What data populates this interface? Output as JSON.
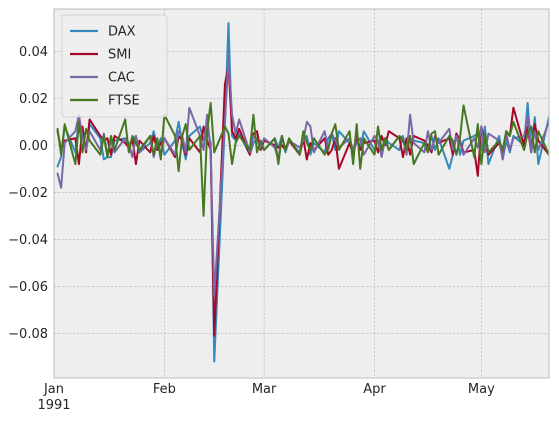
{
  "chart_data": {
    "type": "line",
    "title": "",
    "xlabel": "",
    "ylabel": "",
    "grid": true,
    "legend_position": "top-left",
    "background": "#eeeeee",
    "x_start": "1991-01-01",
    "x_end": "1991-05-20",
    "x_ticks": [
      {
        "date": "1991-01-01",
        "label": "Jan",
        "sublabel": "1991"
      },
      {
        "date": "1991-02-01",
        "label": "Feb",
        "sublabel": ""
      },
      {
        "date": "1991-03-01",
        "label": "Mar",
        "sublabel": ""
      },
      {
        "date": "1991-04-01",
        "label": "Apr",
        "sublabel": ""
      },
      {
        "date": "1991-05-01",
        "label": "May",
        "sublabel": ""
      }
    ],
    "ylim": [
      -0.099,
      0.058
    ],
    "y_ticks": [
      0.04,
      0.02,
      0.0,
      -0.02,
      -0.04,
      -0.06,
      -0.08
    ],
    "y_tick_labels": [
      "0.04",
      "0.02",
      "0.00",
      "−0.02",
      "−0.04",
      "−0.06",
      "−0.08"
    ],
    "x": [
      "1991-01-02",
      "1991-01-03",
      "1991-01-04",
      "1991-01-07",
      "1991-01-08",
      "1991-01-09",
      "1991-01-10",
      "1991-01-11",
      "1991-01-14",
      "1991-01-15",
      "1991-01-16",
      "1991-01-17",
      "1991-01-18",
      "1991-01-21",
      "1991-01-22",
      "1991-01-23",
      "1991-01-24",
      "1991-01-25",
      "1991-01-28",
      "1991-01-29",
      "1991-01-30",
      "1991-01-31",
      "1991-02-01",
      "1991-02-04",
      "1991-02-05",
      "1991-02-06",
      "1991-02-07",
      "1991-02-08",
      "1991-02-11",
      "1991-02-12",
      "1991-02-13",
      "1991-02-14",
      "1991-02-15",
      "1991-02-18",
      "1991-02-19",
      "1991-02-20",
      "1991-02-21",
      "1991-02-22",
      "1991-02-25",
      "1991-02-26",
      "1991-02-27",
      "1991-02-28",
      "1991-03-01",
      "1991-03-04",
      "1991-03-05",
      "1991-03-06",
      "1991-03-07",
      "1991-03-08",
      "1991-03-11",
      "1991-03-12",
      "1991-03-13",
      "1991-03-14",
      "1991-03-15",
      "1991-03-18",
      "1991-03-19",
      "1991-03-20",
      "1991-03-21",
      "1991-03-22",
      "1991-03-25",
      "1991-03-26",
      "1991-03-27",
      "1991-03-28",
      "1991-03-29",
      "1991-04-01",
      "1991-04-02",
      "1991-04-03",
      "1991-04-04",
      "1991-04-05",
      "1991-04-08",
      "1991-04-09",
      "1991-04-10",
      "1991-04-11",
      "1991-04-12",
      "1991-04-15",
      "1991-04-16",
      "1991-04-17",
      "1991-04-18",
      "1991-04-19",
      "1991-04-22",
      "1991-04-23",
      "1991-04-24",
      "1991-04-25",
      "1991-04-26",
      "1991-04-29",
      "1991-04-30",
      "1991-05-01",
      "1991-05-02",
      "1991-05-03",
      "1991-05-06",
      "1991-05-07",
      "1991-05-08",
      "1991-05-09",
      "1991-05-10",
      "1991-05-13",
      "1991-05-14",
      "1991-05-15",
      "1991-05-16",
      "1991-05-17",
      "1991-05-20"
    ],
    "series": [
      {
        "name": "DAX",
        "color": "#348abd",
        "values": [
          -0.009,
          -0.005,
          0.008,
          -0.003,
          0.011,
          0.004,
          -0.002,
          0.009,
          0.003,
          -0.006,
          -0.005,
          -0.005,
          0.002,
          0.003,
          -0.001,
          0.002,
          0.004,
          -0.003,
          0.001,
          0.006,
          -0.001,
          0.003,
          -0.004,
          0.002,
          0.01,
          0.001,
          -0.006,
          0.004,
          0.008,
          0.002,
          0.007,
          0.001,
          -0.092,
          0.01,
          0.052,
          0.004,
          0.002,
          0.005,
          -0.004,
          0.001,
          0.003,
          0.0,
          -0.002,
          0.003,
          -0.001,
          0.004,
          -0.003,
          0.002,
          -0.003,
          0.002,
          0.004,
          -0.004,
          0.001,
          -0.003,
          0.003,
          0.005,
          -0.002,
          0.006,
          0.001,
          -0.002,
          0.003,
          -0.001,
          0.006,
          -0.002,
          0.002,
          -0.003,
          0.003,
          0.001,
          -0.002,
          0.004,
          -0.003,
          0.003,
          0.002,
          0.001,
          -0.002,
          0.004,
          -0.002,
          0.003,
          -0.01,
          -0.004,
          0.005,
          -0.004,
          0.002,
          0.004,
          0.005,
          -0.002,
          0.008,
          -0.008,
          0.004,
          -0.006,
          0.002,
          -0.003,
          0.004,
          0.0,
          0.018,
          -0.002,
          0.012,
          -0.008,
          0.012
        ]
      },
      {
        "name": "SMI",
        "color": "#a60628",
        "values": [
          0.006,
          -0.002,
          0.002,
          0.003,
          -0.008,
          0.008,
          -0.003,
          0.011,
          0.004,
          0.002,
          0.003,
          -0.004,
          0.004,
          0.001,
          -0.001,
          0.003,
          -0.008,
          0.002,
          -0.003,
          0.004,
          -0.002,
          0.001,
          0.003,
          -0.005,
          0.004,
          0.002,
          -0.004,
          0.003,
          -0.003,
          0.008,
          0.002,
          -0.002,
          -0.081,
          0.026,
          0.034,
          0.006,
          0.003,
          0.007,
          -0.004,
          0.005,
          0.006,
          -0.002,
          0.002,
          0.0,
          -0.001,
          0.0,
          -0.002,
          0.002,
          -0.004,
          0.003,
          -0.006,
          0.001,
          -0.002,
          0.003,
          -0.004,
          -0.002,
          0.003,
          -0.01,
          0.001,
          -0.004,
          0.004,
          -0.002,
          0.001,
          0.002,
          -0.003,
          0.004,
          0.0,
          0.006,
          0.003,
          -0.005,
          0.003,
          -0.004,
          0.004,
          0.002,
          0.0,
          -0.003,
          0.004,
          0.001,
          0.003,
          -0.004,
          0.005,
          0.002,
          -0.003,
          -0.002,
          -0.013,
          0.008,
          0.002,
          -0.004,
          0.001,
          -0.003,
          0.006,
          0.004,
          0.016,
          0.0,
          0.008,
          -0.003,
          0.009,
          0.002,
          -0.004
        ]
      },
      {
        "name": "CAC",
        "color": "#7a68a6",
        "values": [
          -0.012,
          -0.018,
          0.001,
          0.006,
          0.013,
          0.003,
          -0.002,
          0.006,
          -0.002,
          0.005,
          -0.004,
          0.002,
          -0.003,
          0.003,
          0.001,
          -0.005,
          0.004,
          -0.003,
          0.004,
          -0.005,
          0.002,
          -0.004,
          0.003,
          -0.004,
          0.006,
          0.004,
          -0.003,
          0.016,
          0.004,
          -0.002,
          0.013,
          -0.003,
          -0.064,
          0.01,
          0.038,
          0.013,
          0.005,
          0.011,
          -0.003,
          0.004,
          0.002,
          -0.001,
          0.003,
          -0.001,
          -0.006,
          0.004,
          -0.002,
          0.002,
          -0.001,
          0.002,
          0.01,
          0.008,
          -0.003,
          0.006,
          -0.002,
          0.005,
          0.002,
          -0.001,
          0.003,
          -0.002,
          0.001,
          0.003,
          -0.004,
          0.004,
          0.002,
          -0.005,
          0.003,
          -0.002,
          0.004,
          0.003,
          -0.004,
          0.013,
          0.001,
          -0.003,
          0.006,
          -0.002,
          0.003,
          0.001,
          0.007,
          -0.002,
          0.004,
          0.001,
          -0.004,
          0.003,
          -0.001,
          0.008,
          -0.003,
          0.005,
          0.002,
          -0.006,
          0.005,
          -0.002,
          0.003,
          0.004,
          0.012,
          -0.003,
          0.006,
          -0.002,
          0.01
        ]
      },
      {
        "name": "FTSE",
        "color": "#467821",
        "values": [
          0.007,
          -0.004,
          0.009,
          -0.008,
          0.01,
          -0.003,
          0.007,
          0.002,
          -0.004,
          0.004,
          -0.005,
          0.004,
          -0.002,
          0.011,
          -0.003,
          0.004,
          0.001,
          -0.002,
          0.004,
          -0.004,
          0.003,
          -0.006,
          0.013,
          0.004,
          -0.011,
          0.004,
          0.009,
          -0.002,
          0.004,
          -0.03,
          0.006,
          0.018,
          -0.003,
          0.008,
          0.005,
          -0.008,
          0.001,
          0.004,
          -0.002,
          0.013,
          -0.003,
          0.002,
          -0.002,
          0.003,
          -0.008,
          0.004,
          -0.002,
          0.003,
          -0.004,
          0.006,
          0.001,
          -0.002,
          0.003,
          -0.004,
          -0.001,
          0.005,
          0.009,
          -0.002,
          0.006,
          -0.008,
          0.009,
          -0.01,
          0.003,
          -0.004,
          0.008,
          -0.002,
          0.003,
          -0.002,
          0.004,
          0.002,
          -0.002,
          0.004,
          -0.008,
          0.001,
          -0.003,
          0.005,
          0.006,
          -0.004,
          0.004,
          0.002,
          -0.004,
          0.003,
          0.017,
          -0.005,
          0.009,
          -0.008,
          0.005,
          -0.003,
          0.002,
          -0.002,
          0.006,
          0.004,
          0.01,
          -0.002,
          0.005,
          0.008,
          -0.003,
          0.006,
          -0.004
        ]
      }
    ]
  }
}
